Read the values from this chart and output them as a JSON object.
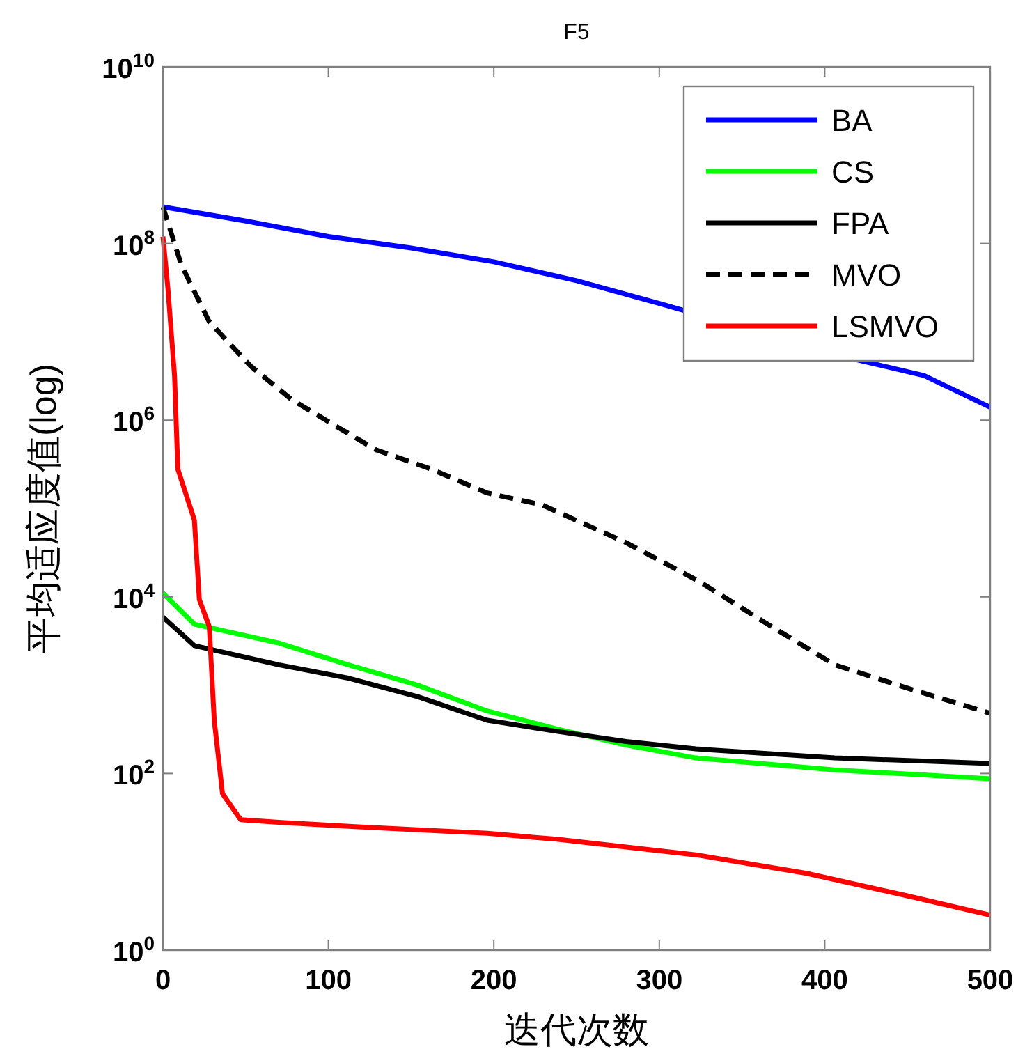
{
  "chart_data": {
    "type": "line",
    "title": "F5",
    "xlabel": "迭代次数",
    "ylabel": "平均适应度值(log)",
    "log": "y",
    "grid": false,
    "legend": "top right",
    "xlim": [
      0,
      500
    ],
    "xticks": [
      0,
      100,
      200,
      300,
      400,
      500
    ],
    "ylim": [
      1,
      10000000000
    ],
    "yticks": [
      {
        "value": 1,
        "label": "10$^{0}$"
      },
      {
        "value": 100,
        "label": "10$^{2}$"
      },
      {
        "value": 10000,
        "label": "10$^{4}$"
      },
      {
        "value": 1000000,
        "label": "10$^{6}$"
      },
      {
        "value": 100000000,
        "label": "10$^{8}$"
      },
      {
        "value": 10000000000,
        "label": "10$^{10}$"
      }
    ],
    "series": [
      {
        "name": "BA",
        "color": "#0000ff",
        "line_style": "solid",
        "x": [
          0,
          50,
          100,
          150,
          200,
          250,
          300,
          420,
          460,
          500
        ],
        "values": [
          260000000,
          180000000,
          120000000,
          89000000,
          62000000,
          38000000,
          21000000,
          4800000,
          3200000,
          1400000
        ]
      },
      {
        "name": "CS",
        "color": "#00ff00",
        "line_style": "solid",
        "x": [
          0,
          19,
          70,
          112,
          154,
          196,
          238,
          280,
          322,
          406,
          500
        ],
        "values": [
          11000,
          4900,
          3000,
          1700,
          1000,
          510,
          320,
          210,
          150,
          110,
          87
        ]
      },
      {
        "name": "FPA",
        "color": "#000000",
        "line_style": "solid",
        "x": [
          0,
          19,
          70,
          112,
          154,
          196,
          238,
          280,
          322,
          406,
          500
        ],
        "values": [
          5900,
          2800,
          1700,
          1200,
          740,
          400,
          300,
          230,
          190,
          150,
          130
        ]
      },
      {
        "name": "MVO",
        "color": "#000000",
        "line_style": "dashed",
        "x": [
          0,
          11,
          28,
          53,
          78,
          103,
          129,
          162,
          196,
          229,
          280,
          324,
          364,
          406,
          448,
          500
        ],
        "values": [
          260000000,
          58000000,
          13000000,
          4100000,
          1700000,
          890000,
          460000,
          280000,
          150000,
          110000,
          41000,
          15000,
          5100,
          1700,
          950,
          480
        ]
      },
      {
        "name": "LSMVO",
        "color": "#ff0000",
        "line_style": "solid",
        "x": [
          0,
          3,
          7,
          9,
          19,
          22,
          28,
          31,
          36,
          47,
          70,
          116,
          196,
          238,
          322,
          389,
          448,
          500
        ],
        "values": [
          120000000,
          31000000,
          3200000,
          280000,
          74000,
          9300,
          4600,
          400,
          59,
          30,
          28,
          25,
          21,
          18,
          12,
          7.4,
          4.2,
          2.5
        ]
      }
    ]
  }
}
